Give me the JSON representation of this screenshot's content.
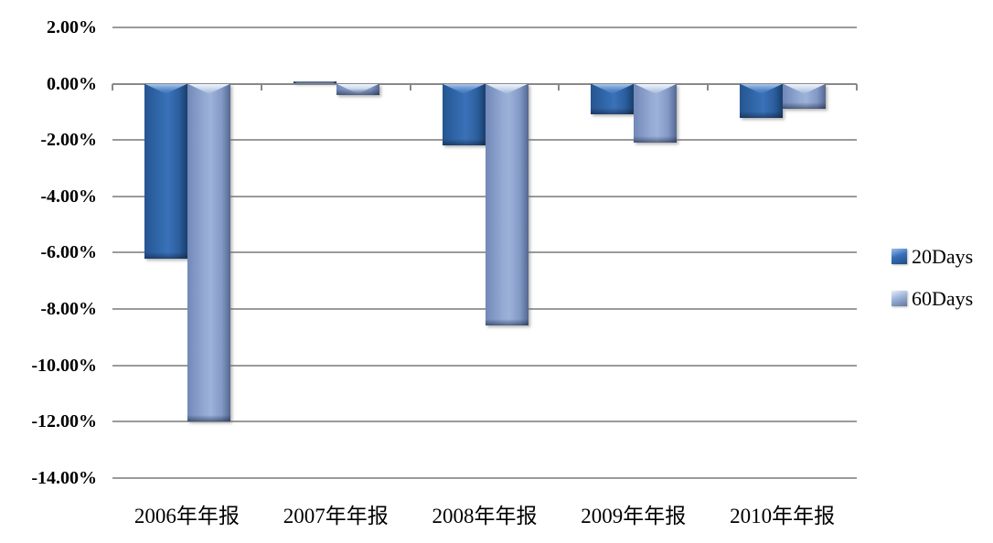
{
  "chart_data": {
    "type": "bar",
    "categories": [
      "2006年年报",
      "2007年年报",
      "2008年年报",
      "2009年年报",
      "2010年年报"
    ],
    "series": [
      {
        "name": "20Days",
        "color": "#2E62A6",
        "values": [
          -6.2,
          0.05,
          -2.2,
          -1.1,
          -1.2
        ]
      },
      {
        "name": "60Days",
        "color": "#96ACD6",
        "values": [
          -12.0,
          -0.4,
          -8.6,
          -2.1,
          -0.9
        ]
      }
    ],
    "title": "",
    "xlabel": "",
    "ylabel": "",
    "ylim": [
      -14,
      2
    ],
    "ytick_step": 2,
    "yticks_labels": [
      "2.00%",
      "0.00%",
      "-2.00%",
      "-4.00%",
      "-6.00%",
      "-8.00%",
      "-10.00%",
      "-12.00%",
      "-14.00%"
    ],
    "grid": true,
    "legend_position": "right"
  },
  "colors": {
    "series_20days": "#2E62A6",
    "series_60days": "#96ACD6",
    "gridline": "#9A9A9A",
    "axis": "#898989",
    "text": "#000000",
    "background": "#FFFFFF"
  }
}
